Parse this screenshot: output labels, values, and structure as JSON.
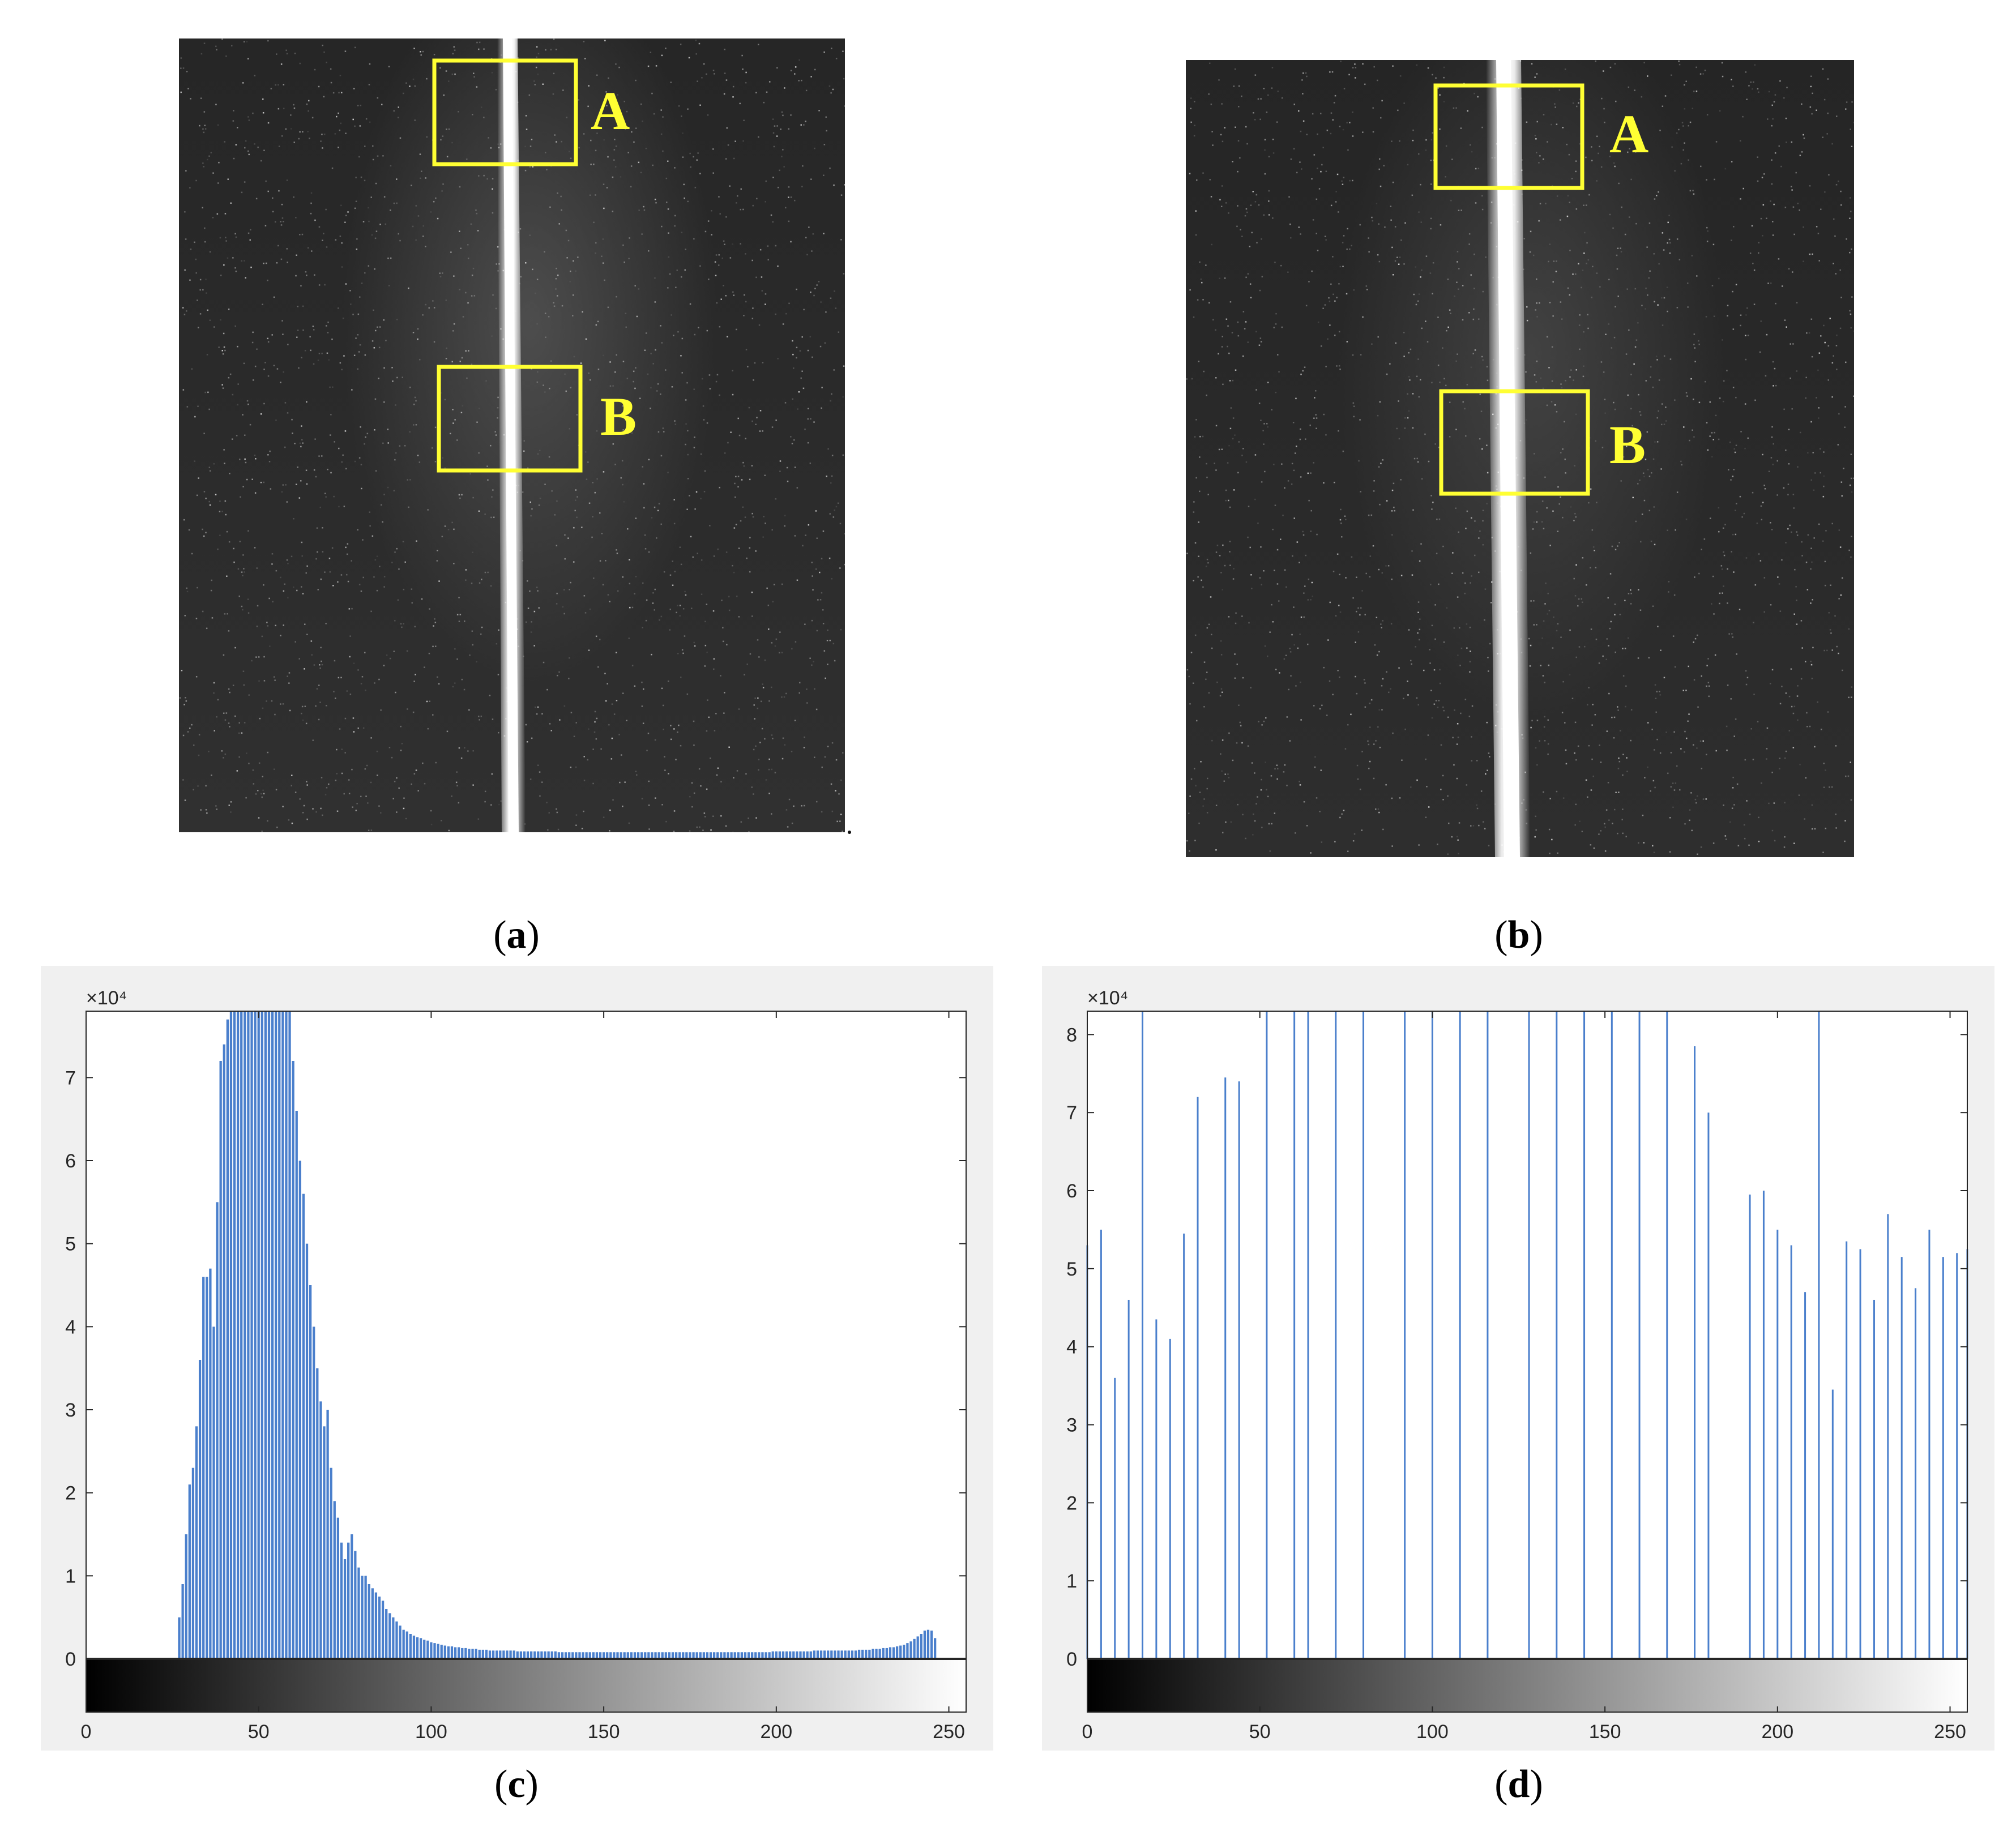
{
  "panels": {
    "a": {
      "label": "a",
      "box_labels": [
        "A",
        "B"
      ]
    },
    "b": {
      "label": "b",
      "box_labels": [
        "A",
        "B"
      ]
    },
    "c": {
      "label": "c"
    },
    "d": {
      "label": "d"
    }
  },
  "colors": {
    "box": "#ffff33",
    "bar": "#4a7fcc",
    "frame_bg": "#f0f0f0"
  },
  "chart_data": [
    {
      "id": "c",
      "type": "bar",
      "title": "",
      "xlabel": "",
      "ylabel": "",
      "exponent_label": "×10⁴",
      "xlim": [
        0,
        255
      ],
      "ylim": [
        0,
        7.8
      ],
      "xticks": [
        0,
        50,
        100,
        150,
        200,
        250
      ],
      "yticks": [
        0,
        1,
        2,
        3,
        4,
        5,
        6,
        7
      ],
      "colorbar": "grayscale 0-255",
      "x_values": "0..255 (intensity levels)",
      "values": [
        0,
        0,
        0,
        0,
        0,
        0,
        0,
        0,
        0,
        0,
        0,
        0,
        0,
        0,
        0,
        0,
        0,
        0,
        0,
        0,
        0,
        0,
        0,
        0,
        0,
        0,
        0,
        0.5,
        0.9,
        1.5,
        2.1,
        2.3,
        2.8,
        3.6,
        4.6,
        4.6,
        4.7,
        4.0,
        5.5,
        7.2,
        7.4,
        7.7,
        7.8,
        7.8,
        7.8,
        7.8,
        7.8,
        7.8,
        7.8,
        7.8,
        7.8,
        7.8,
        7.8,
        7.8,
        7.8,
        7.8,
        7.8,
        7.8,
        7.8,
        7.8,
        7.2,
        6.6,
        6.0,
        5.6,
        5.0,
        4.5,
        4.0,
        3.5,
        3.1,
        2.8,
        3.0,
        2.3,
        1.9,
        1.7,
        1.4,
        1.2,
        1.4,
        1.5,
        1.3,
        1.1,
        1.0,
        1.0,
        0.9,
        0.85,
        0.8,
        0.75,
        0.7,
        0.6,
        0.55,
        0.5,
        0.45,
        0.4,
        0.35,
        0.33,
        0.3,
        0.28,
        0.26,
        0.25,
        0.23,
        0.22,
        0.2,
        0.19,
        0.18,
        0.17,
        0.16,
        0.15,
        0.15,
        0.14,
        0.14,
        0.13,
        0.13,
        0.12,
        0.12,
        0.12,
        0.11,
        0.11,
        0.11,
        0.1,
        0.1,
        0.1,
        0.1,
        0.1,
        0.1,
        0.1,
        0.1,
        0.09,
        0.09,
        0.09,
        0.09,
        0.09,
        0.09,
        0.09,
        0.09,
        0.09,
        0.09,
        0.09,
        0.09,
        0.08,
        0.08,
        0.08,
        0.08,
        0.08,
        0.08,
        0.08,
        0.08,
        0.08,
        0.08,
        0.08,
        0.08,
        0.08,
        0.08,
        0.08,
        0.08,
        0.08,
        0.08,
        0.08,
        0.08,
        0.08,
        0.08,
        0.08,
        0.08,
        0.08,
        0.08,
        0.08,
        0.08,
        0.08,
        0.08,
        0.08,
        0.08,
        0.08,
        0.08,
        0.08,
        0.08,
        0.08,
        0.08,
        0.08,
        0.08,
        0.08,
        0.08,
        0.08,
        0.08,
        0.08,
        0.08,
        0.08,
        0.08,
        0.08,
        0.08,
        0.08,
        0.08,
        0.08,
        0.08,
        0.08,
        0.08,
        0.08,
        0.08,
        0.08,
        0.08,
        0.08,
        0.08,
        0.09,
        0.09,
        0.09,
        0.09,
        0.09,
        0.09,
        0.09,
        0.09,
        0.09,
        0.09,
        0.09,
        0.09,
        0.1,
        0.1,
        0.1,
        0.1,
        0.1,
        0.1,
        0.1,
        0.1,
        0.1,
        0.1,
        0.1,
        0.1,
        0.1,
        0.11,
        0.11,
        0.11,
        0.11,
        0.12,
        0.12,
        0.12,
        0.13,
        0.13,
        0.14,
        0.14,
        0.15,
        0.16,
        0.17,
        0.19,
        0.21,
        0.24,
        0.27,
        0.3,
        0.34,
        0.35,
        0.34,
        0.25
      ]
    },
    {
      "id": "d",
      "type": "bar",
      "title": "",
      "xlabel": "",
      "ylabel": "",
      "exponent_label": "×10⁴",
      "xlim": [
        0,
        255
      ],
      "ylim": [
        0,
        8.3
      ],
      "xticks": [
        0,
        50,
        100,
        150,
        200,
        250
      ],
      "yticks": [
        0,
        1,
        2,
        3,
        4,
        5,
        6,
        7,
        8
      ],
      "colorbar": "grayscale 0-255",
      "x": [
        0,
        4,
        8,
        12,
        16,
        20,
        24,
        28,
        32,
        40,
        44,
        52,
        60,
        64,
        72,
        80,
        92,
        100,
        108,
        116,
        128,
        136,
        144,
        152,
        160,
        168,
        176,
        180,
        192,
        196,
        200,
        204,
        208,
        212,
        216,
        220,
        224,
        228,
        232,
        236,
        240,
        244,
        248,
        252,
        255
      ],
      "values": [
        5.3,
        5.5,
        3.6,
        4.6,
        8.3,
        4.35,
        4.1,
        5.45,
        7.2,
        7.45,
        7.4,
        8.3,
        8.3,
        8.3,
        8.3,
        8.3,
        8.3,
        8.3,
        8.3,
        8.3,
        8.3,
        8.3,
        8.3,
        8.3,
        8.3,
        8.3,
        7.85,
        7.0,
        5.95,
        6.0,
        5.5,
        5.3,
        4.7,
        8.3,
        3.45,
        5.35,
        5.25,
        4.6,
        5.7,
        5.15,
        4.75,
        5.5,
        5.15,
        5.2,
        5.25
      ]
    }
  ]
}
